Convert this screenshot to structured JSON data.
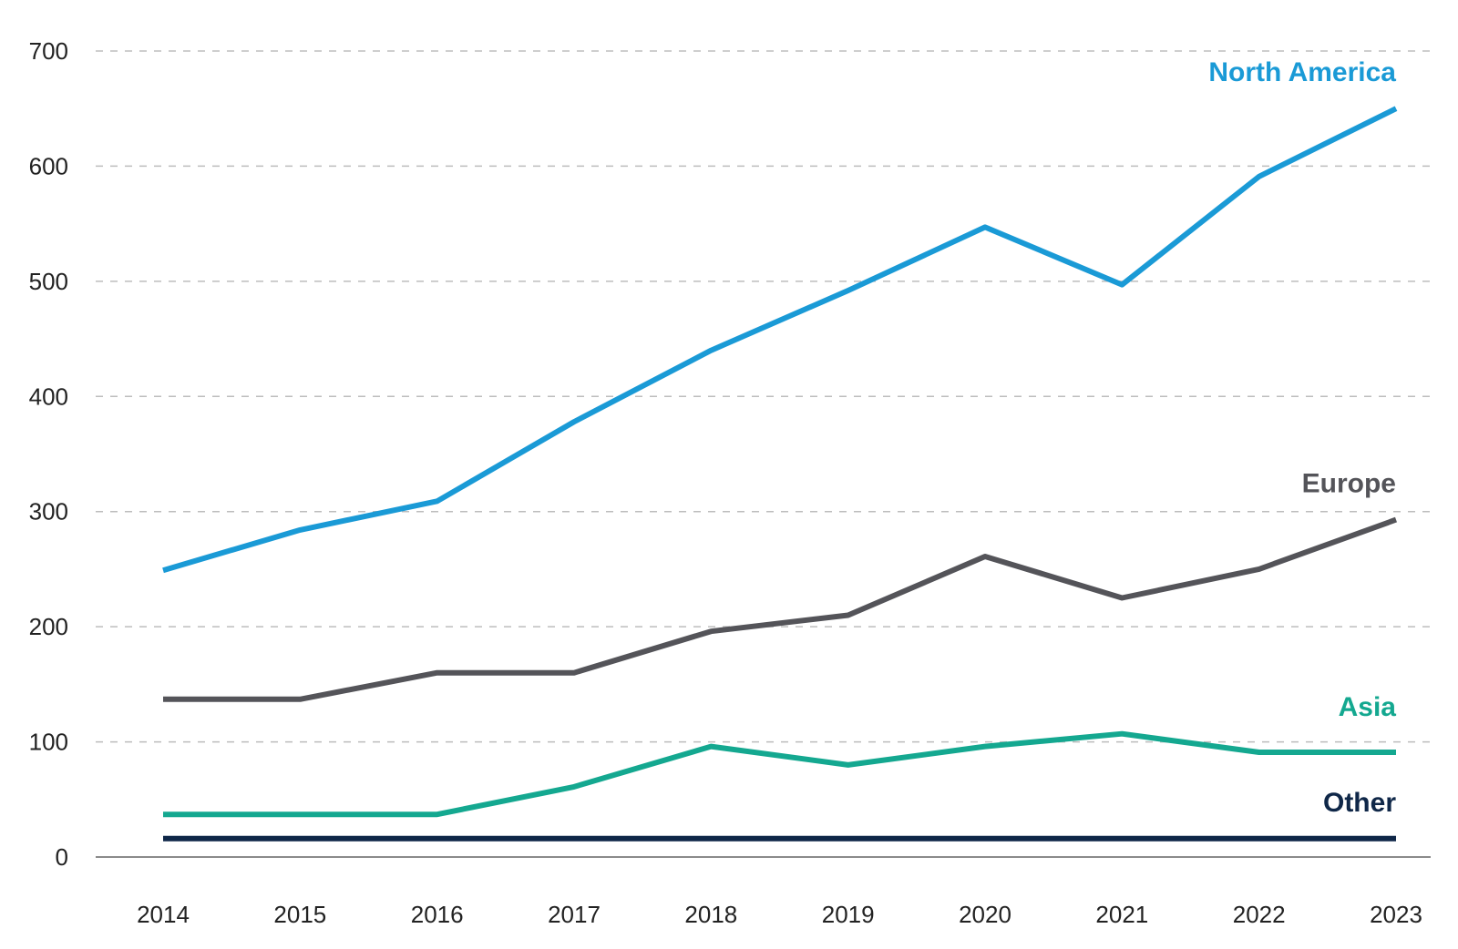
{
  "chart_data": {
    "type": "line",
    "title": "",
    "xlabel": "",
    "ylabel": "",
    "categories": [
      "2014",
      "2015",
      "2016",
      "2017",
      "2018",
      "2019",
      "2020",
      "2021",
      "2022",
      "2023"
    ],
    "ylim": [
      0,
      700
    ],
    "yticks": [
      0,
      100,
      200,
      300,
      400,
      500,
      600,
      700
    ],
    "grid": true,
    "legend": "direct labels at right end of lines",
    "series": [
      {
        "name": "North America",
        "color": "#1a9ad6",
        "points": [
          [
            2014,
            249
          ],
          [
            2015,
            284
          ],
          [
            2016,
            309
          ],
          [
            2017,
            378
          ],
          [
            2018,
            440
          ],
          [
            2019,
            492
          ],
          [
            2020,
            547
          ],
          [
            2021,
            497
          ],
          [
            2022,
            591
          ],
          [
            2023,
            650
          ]
        ]
      },
      {
        "name": "Europe",
        "color": "#545459",
        "points": [
          [
            2014,
            137
          ],
          [
            2015,
            137
          ],
          [
            2016,
            160
          ],
          [
            2017,
            160
          ],
          [
            2018,
            196
          ],
          [
            2019,
            210
          ],
          [
            2020,
            261
          ],
          [
            2021,
            225
          ],
          [
            2022,
            250
          ],
          [
            2023,
            293
          ]
        ]
      },
      {
        "name": "Asia",
        "color": "#14a890",
        "points": [
          [
            2014,
            37
          ],
          [
            2015,
            37
          ],
          [
            2016,
            37
          ],
          [
            2017,
            61
          ],
          [
            2018,
            96
          ],
          [
            2019,
            80
          ],
          [
            2020,
            96
          ],
          [
            2021,
            107
          ],
          [
            2022,
            91
          ],
          [
            2023,
            91
          ]
        ]
      },
      {
        "name": "Other",
        "color": "#0f2748",
        "points": [
          [
            2014,
            16
          ],
          [
            2015,
            16
          ],
          [
            2016,
            16
          ],
          [
            2017,
            16
          ],
          [
            2018,
            16
          ],
          [
            2019,
            16
          ],
          [
            2020,
            16
          ],
          [
            2021,
            16
          ],
          [
            2022,
            16
          ],
          [
            2023,
            16
          ]
        ]
      }
    ]
  }
}
